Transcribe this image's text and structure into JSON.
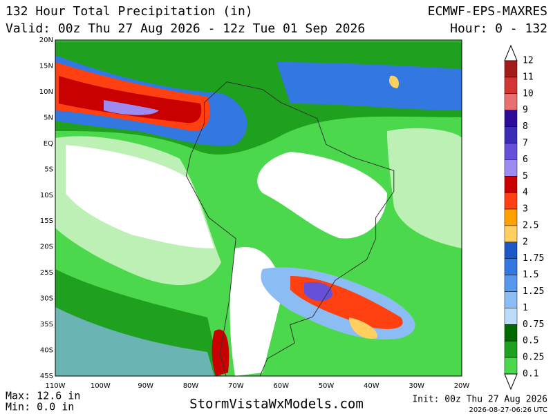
{
  "header": {
    "title": "132 Hour Total Precipitation (in)",
    "model": "ECMWF-EPS-MAXRES",
    "valid": "Valid: 00z Thu 27 Aug 2026 - 12z Tue 01 Sep 2026",
    "hour": "Hour: 0 - 132"
  },
  "map": {
    "lat_labels": [
      "20N",
      "15N",
      "10N",
      "5N",
      "EQ",
      "5S",
      "10S",
      "15S",
      "20S",
      "25S",
      "30S",
      "35S",
      "40S",
      "45S"
    ],
    "lon_labels": [
      "110W",
      "100W",
      "90W",
      "80W",
      "70W",
      "60W",
      "50W",
      "40W",
      "30W",
      "20W"
    ]
  },
  "colorbar": {
    "labels": [
      "12",
      "11",
      "10",
      "9",
      "8",
      "7",
      "6",
      "5",
      "4",
      "3",
      "2.5",
      "2",
      "1.75",
      "1.5",
      "1.25",
      "1",
      "0.75",
      "0.5",
      "0.25",
      "0.1"
    ],
    "colors": [
      "#a31c1c",
      "#d33434",
      "#e87070",
      "#2c0c98",
      "#3a2cb4",
      "#6650d8",
      "#9c8cf2",
      "#c80000",
      "#ff4010",
      "#ffa000",
      "#ffd060",
      "#1e58c8",
      "#3278e0",
      "#5898ec",
      "#8cbcf4",
      "#bcdcfc",
      "#006a00",
      "#1fa01f",
      "#4cd84c"
    ]
  },
  "footer": {
    "max": "Max: 12.6 in",
    "min": "Min: 0.0 in",
    "site": "StormVistaWxModels.com",
    "init": "Init: 00z Thu 27 Aug 2026",
    "stamp": "2026-08-27-06:26 UTC"
  }
}
